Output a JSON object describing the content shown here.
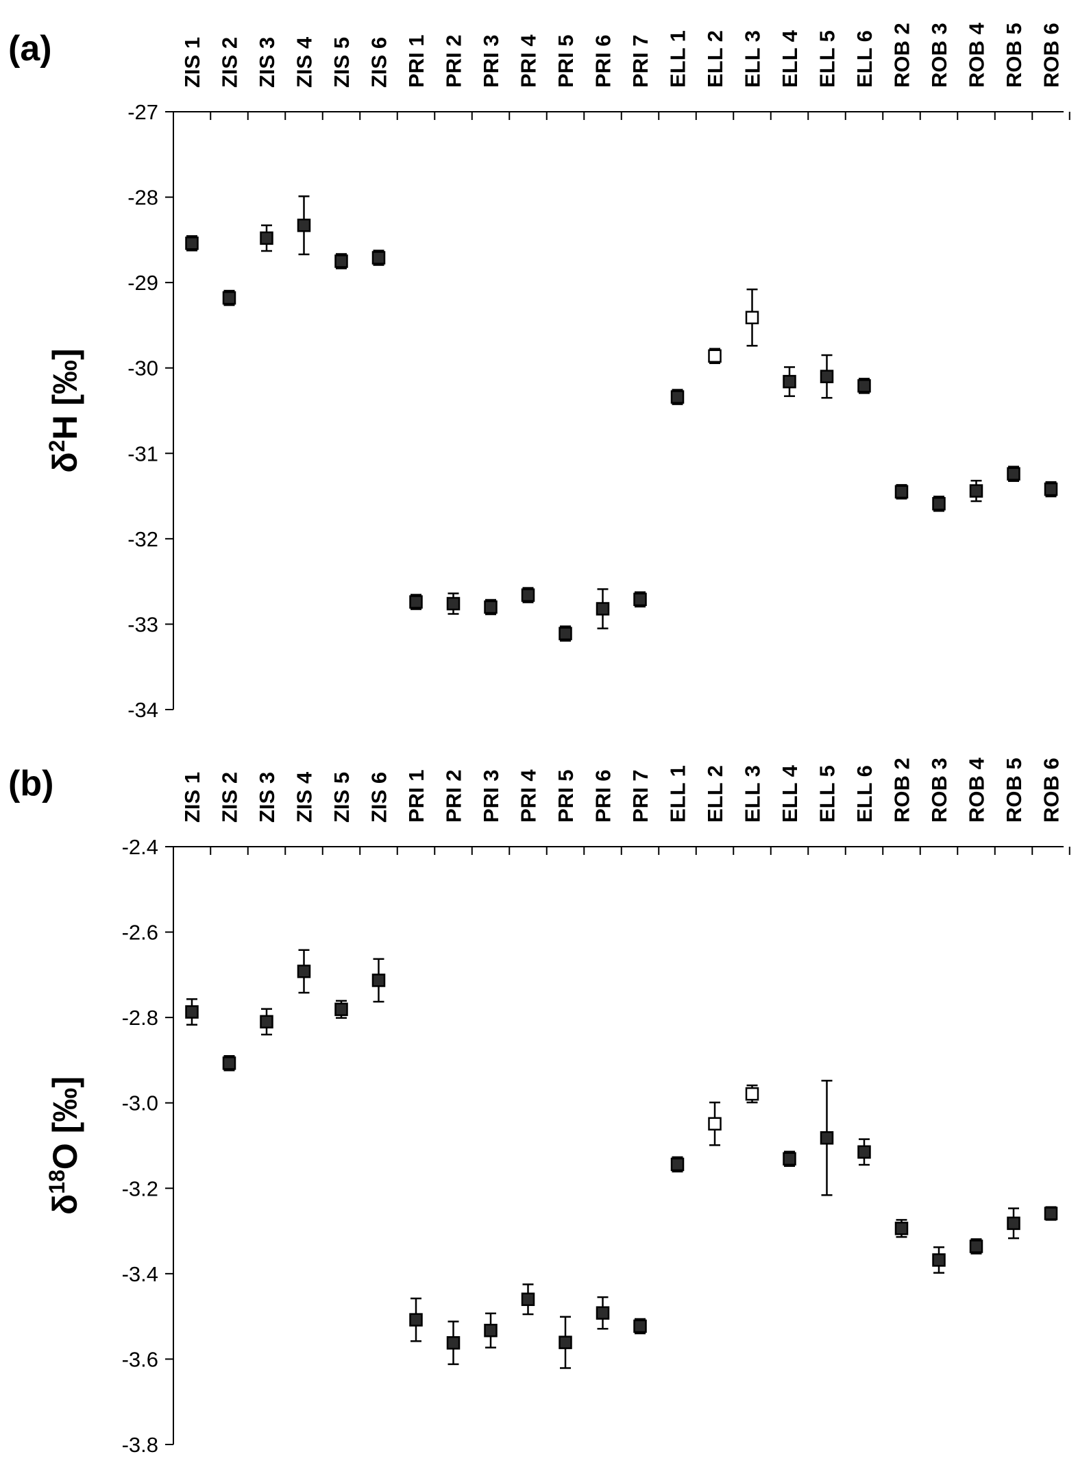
{
  "chart_data": [
    {
      "type": "scatter",
      "panel_label": "(a)",
      "ylabel_main": "δ",
      "ylabel_sup": "2",
      "ylabel_rest": "H [‰]",
      "ylim": [
        -34,
        -27
      ],
      "yticks": [
        "-27",
        "-28",
        "-29",
        "-30",
        "-31",
        "-32",
        "-33",
        "-34"
      ],
      "ytick_values": [
        -27,
        -28,
        -29,
        -30,
        -31,
        -32,
        -33,
        -34
      ],
      "categories": [
        "ZIS 1",
        "ZIS 2",
        "ZIS 3",
        "ZIS 4",
        "ZIS 5",
        "ZIS 6",
        "PRI 1",
        "PRI 2",
        "PRI 3",
        "PRI 4",
        "PRI 5",
        "PRI 6",
        "PRI 7",
        "ELL 1",
        "ELL 2",
        "ELL 3",
        "ELL 4",
        "ELL 5",
        "ELL 6",
        "ROB 2",
        "ROB 3",
        "ROB 4",
        "ROB 5",
        "ROB 6"
      ],
      "values": [
        -28.54,
        -29.18,
        -28.48,
        -28.33,
        -28.75,
        -28.71,
        -32.74,
        -32.76,
        -32.8,
        -32.66,
        -33.11,
        -32.82,
        -32.71,
        -30.34,
        -29.86,
        -29.41,
        -30.16,
        -30.1,
        -30.21,
        -31.45,
        -31.59,
        -31.44,
        -31.24,
        -31.42
      ],
      "errors": [
        0.03,
        0.06,
        0.15,
        0.34,
        0.02,
        0.03,
        0.03,
        0.12,
        0.03,
        0.03,
        0.02,
        0.23,
        0.04,
        0.02,
        0.02,
        0.33,
        0.17,
        0.25,
        0.02,
        0.08,
        0.02,
        0.12,
        0.02,
        0.03
      ],
      "open_marker": [
        false,
        false,
        false,
        false,
        false,
        false,
        false,
        false,
        false,
        false,
        false,
        false,
        false,
        false,
        true,
        true,
        false,
        false,
        false,
        false,
        false,
        false,
        false,
        false
      ],
      "grid": false
    },
    {
      "type": "scatter",
      "panel_label": "(b)",
      "ylabel_main": "δ",
      "ylabel_sup": "18",
      "ylabel_rest": "O [‰]",
      "ylim": [
        -3.8,
        -2.4
      ],
      "yticks": [
        "-2.4",
        "-2.6",
        "-2.8",
        "-3.0",
        "-3.2",
        "-3.4",
        "-3.6",
        "-3.8"
      ],
      "ytick_values": [
        -2.4,
        -2.6,
        -2.8,
        -3.0,
        -3.2,
        -3.4,
        -3.6,
        -3.8
      ],
      "categories": [
        "ZIS 1",
        "ZIS 2",
        "ZIS 3",
        "ZIS 4",
        "ZIS 5",
        "ZIS 6",
        "PRI 1",
        "PRI 2",
        "PRI 3",
        "PRI 4",
        "PRI 5",
        "PRI 6",
        "PRI 7",
        "ELL 1",
        "ELL 2",
        "ELL 3",
        "ELL 4",
        "ELL 5",
        "ELL 6",
        "ROB 2",
        "ROB 3",
        "ROB 4",
        "ROB 5",
        "ROB 6"
      ],
      "values": [
        -2.787,
        -2.907,
        -2.81,
        -2.692,
        -2.781,
        -2.713,
        -3.508,
        -3.562,
        -3.533,
        -3.46,
        -3.561,
        -3.492,
        -3.523,
        -3.144,
        -3.049,
        -2.979,
        -3.131,
        -3.082,
        -3.115,
        -3.294,
        -3.368,
        -3.336,
        -3.282,
        -3.259
      ],
      "errors": [
        0.03,
        0.005,
        0.03,
        0.05,
        0.02,
        0.05,
        0.05,
        0.05,
        0.04,
        0.035,
        0.06,
        0.037,
        0.008,
        0.008,
        0.05,
        0.02,
        0.008,
        0.134,
        0.03,
        0.02,
        0.03,
        0.005,
        0.035,
        0.015
      ],
      "open_marker": [
        false,
        false,
        false,
        false,
        false,
        false,
        false,
        false,
        false,
        false,
        false,
        false,
        false,
        false,
        true,
        true,
        false,
        false,
        false,
        false,
        false,
        false,
        false,
        false
      ],
      "grid": false
    }
  ]
}
